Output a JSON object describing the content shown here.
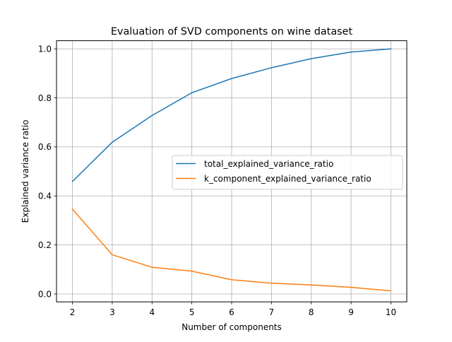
{
  "chart_data": {
    "type": "line",
    "title": "Evaluation of SVD components on wine dataset",
    "xlabel": "Number of components",
    "ylabel": "Explained variance ratio",
    "x": [
      2,
      3,
      4,
      5,
      6,
      7,
      8,
      9,
      10
    ],
    "xticks": [
      "2",
      "3",
      "4",
      "5",
      "6",
      "7",
      "8",
      "9",
      "10"
    ],
    "yticks": [
      "0.0",
      "0.2",
      "0.4",
      "0.6",
      "0.8",
      "1.0"
    ],
    "ytick_values": [
      0.0,
      0.2,
      0.4,
      0.6,
      0.8,
      1.0
    ],
    "xlim": [
      1.6,
      10.4
    ],
    "ylim": [
      -0.0322,
      1.0333
    ],
    "grid": true,
    "legend_position": "center-right",
    "series": [
      {
        "name": "total_explained_variance_ratio",
        "color": "#1f77b4",
        "values": [
          0.459,
          0.619,
          0.728,
          0.821,
          0.879,
          0.923,
          0.96,
          0.987,
          1.0
        ]
      },
      {
        "name": "k_component_explained_variance_ratio",
        "color": "#ff7f0e",
        "values": [
          0.346,
          0.16,
          0.109,
          0.093,
          0.058,
          0.044,
          0.037,
          0.027,
          0.013
        ]
      }
    ]
  }
}
